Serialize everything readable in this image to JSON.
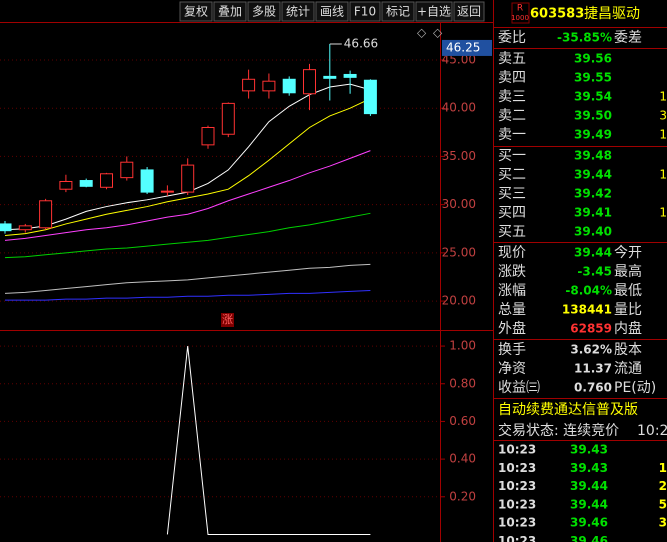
{
  "toolbar": [
    "复权",
    "叠加",
    "多股",
    "统计",
    "画线",
    "F10",
    "标记",
    "+自选",
    "返回"
  ],
  "price_chart": {
    "ylim": [
      17,
      48.94
    ],
    "yticks": [
      {
        "value": 45,
        "label": "45.00"
      },
      {
        "value": 40,
        "label": "40.00"
      },
      {
        "value": 35,
        "label": "35.00"
      },
      {
        "value": 30,
        "label": "30.00"
      },
      {
        "value": 25,
        "label": "25.00"
      },
      {
        "value": 20,
        "label": "20.00"
      }
    ],
    "marker_label": {
      "value": 46.25,
      "label": "46.25"
    },
    "high_label": {
      "value": 46.66,
      "label": "46.66"
    },
    "limit_flag": "涨",
    "up_color": "#ff3232",
    "down_color": "#54ffff",
    "candles": [
      {
        "o": 28.0,
        "h": 28.3,
        "l": 27.0,
        "c": 27.3
      },
      {
        "o": 27.4,
        "h": 28.0,
        "l": 27.1,
        "c": 27.8
      },
      {
        "o": 27.6,
        "h": 30.6,
        "l": 27.4,
        "c": 30.4
      },
      {
        "o": 31.6,
        "h": 33.1,
        "l": 31.3,
        "c": 32.4
      },
      {
        "o": 32.5,
        "h": 32.7,
        "l": 31.8,
        "c": 31.9
      },
      {
        "o": 31.8,
        "h": 33.3,
        "l": 31.6,
        "c": 33.2
      },
      {
        "o": 32.8,
        "h": 35.0,
        "l": 32.5,
        "c": 34.4
      },
      {
        "o": 33.6,
        "h": 33.9,
        "l": 31.1,
        "c": 31.3
      },
      {
        "o": 31.4,
        "h": 32.0,
        "l": 30.9,
        "c": 31.4
      },
      {
        "o": 31.3,
        "h": 34.8,
        "l": 31.0,
        "c": 34.1
      },
      {
        "o": 36.2,
        "h": 38.2,
        "l": 35.8,
        "c": 38.0
      },
      {
        "o": 37.3,
        "h": 40.6,
        "l": 37.0,
        "c": 40.5
      },
      {
        "o": 41.8,
        "h": 44.0,
        "l": 41.0,
        "c": 43.0
      },
      {
        "o": 41.8,
        "h": 43.6,
        "l": 41.0,
        "c": 42.8
      },
      {
        "o": 43.0,
        "h": 43.3,
        "l": 41.3,
        "c": 41.6
      },
      {
        "o": 41.5,
        "h": 44.6,
        "l": 39.8,
        "c": 44.0
      },
      {
        "o": 43.3,
        "h": 46.66,
        "l": 40.8,
        "c": 43.1
      },
      {
        "o": 43.5,
        "h": 43.9,
        "l": 41.5,
        "c": 43.2
      },
      {
        "o": 42.9,
        "h": 43.0,
        "l": 39.2,
        "c": 39.44
      }
    ],
    "ma_lines": [
      {
        "color": "#ffffff",
        "values": [
          27.4,
          27.5,
          27.8,
          28.5,
          29.3,
          29.8,
          30.2,
          30.5,
          30.9,
          31.3,
          32.2,
          33.6,
          36.0,
          38.6,
          40.2,
          41.4,
          42.2,
          42.5,
          41.9
        ]
      },
      {
        "color": "#ffff00",
        "values": [
          26.8,
          27.0,
          27.4,
          28.0,
          28.5,
          29.0,
          29.4,
          29.8,
          30.3,
          30.7,
          31.1,
          31.6,
          33.0,
          34.6,
          36.3,
          38.0,
          39.2,
          40.0,
          41.0
        ]
      },
      {
        "color": "#ff40ff",
        "values": [
          26.3,
          26.5,
          26.8,
          27.1,
          27.4,
          27.6,
          27.9,
          28.3,
          28.7,
          29.0,
          29.6,
          30.4,
          31.1,
          31.8,
          32.5,
          33.3,
          34.0,
          34.8,
          35.6
        ]
      },
      {
        "color": "#00d000",
        "values": [
          24.5,
          24.6,
          24.8,
          25.0,
          25.2,
          25.4,
          25.5,
          25.7,
          25.9,
          26.1,
          26.3,
          26.6,
          26.9,
          27.2,
          27.6,
          27.9,
          28.3,
          28.7,
          29.1
        ]
      },
      {
        "color": "#c0c0c0",
        "values": [
          20.8,
          20.9,
          21.1,
          21.3,
          21.5,
          21.7,
          21.9,
          22.0,
          22.1,
          22.2,
          22.4,
          22.6,
          22.8,
          23.0,
          23.2,
          23.4,
          23.5,
          23.7,
          23.8
        ]
      },
      {
        "color": "#3030ff",
        "values": [
          20.1,
          20.1,
          20.1,
          20.2,
          20.2,
          20.3,
          20.3,
          20.4,
          20.4,
          20.5,
          20.5,
          20.6,
          20.6,
          20.7,
          20.8,
          20.8,
          20.9,
          21.0,
          21.1
        ]
      }
    ]
  },
  "indicator_chart": {
    "ylim": [
      -0.04,
      1.08
    ],
    "yticks": [
      {
        "value": 1,
        "label": "1.00"
      },
      {
        "value": 0.8,
        "label": "0.80"
      },
      {
        "value": 0.6,
        "label": "0.60"
      },
      {
        "value": 0.4,
        "label": "0.40"
      },
      {
        "value": 0.2,
        "label": "0.20"
      }
    ],
    "color": "#ffffff",
    "values": [
      null,
      null,
      null,
      null,
      null,
      null,
      null,
      null,
      0,
      1,
      0,
      0,
      0,
      0,
      0,
      0,
      0,
      0,
      0
    ]
  },
  "quote": {
    "badge_top": "R",
    "badge_bottom": "1000",
    "code": "603583",
    "name": "捷昌驱动",
    "ratio_row": {
      "label": "委比",
      "value": "-35.85%",
      "label2": "委差",
      "color": "#00e000"
    },
    "book_color": "#00e000",
    "volume_color": "#ffff00",
    "asks": [
      {
        "label": "卖五",
        "price": "39.56"
      },
      {
        "label": "卖四",
        "price": "39.55"
      },
      {
        "label": "卖三",
        "price": "39.54",
        "volume": "1"
      },
      {
        "label": "卖二",
        "price": "39.50",
        "volume": "3"
      },
      {
        "label": "卖一",
        "price": "39.49",
        "volume": "1"
      }
    ],
    "bids": [
      {
        "label": "买一",
        "price": "39.48"
      },
      {
        "label": "买二",
        "price": "39.44",
        "volume": "1"
      },
      {
        "label": "买三",
        "price": "39.42"
      },
      {
        "label": "买四",
        "price": "39.41",
        "volume": "1"
      },
      {
        "label": "买五",
        "price": "39.40"
      }
    ],
    "stats": [
      {
        "label": "现价",
        "value": "39.44",
        "label2": "今开",
        "color": "#00e000"
      },
      {
        "label": "涨跌",
        "value": "-3.45",
        "label2": "最高",
        "color": "#00e000"
      },
      {
        "label": "涨幅",
        "value": "-8.04%",
        "label2": "最低",
        "color": "#00e000"
      },
      {
        "label": "总量",
        "value": "138441",
        "label2": "量比",
        "color": "#ffff00"
      },
      {
        "label": "外盘",
        "value": "62859",
        "label2": "内盘",
        "color": "#ff3232"
      }
    ],
    "fundamentals": [
      {
        "label": "换手",
        "value": "3.62%",
        "label2": "股本"
      },
      {
        "label": "净资",
        "value": "11.37",
        "label2": "流通"
      },
      {
        "label": "收益㈢",
        "value": "0.760",
        "label2": "PE(动)"
      }
    ],
    "ticker": "自动续费通达信普及版",
    "trade_status": "交易状态: 连续竞价",
    "trade_status_time": "10:2",
    "trades": [
      {
        "time": "10:23",
        "price": "39.43"
      },
      {
        "time": "10:23",
        "price": "39.43",
        "volume": "1"
      },
      {
        "time": "10:23",
        "price": "39.44",
        "volume": "2"
      },
      {
        "time": "10:23",
        "price": "39.44",
        "volume": "5"
      },
      {
        "time": "10:23",
        "price": "39.46",
        "volume": "3"
      },
      {
        "time": "10:23",
        "price": "39.46"
      }
    ]
  }
}
